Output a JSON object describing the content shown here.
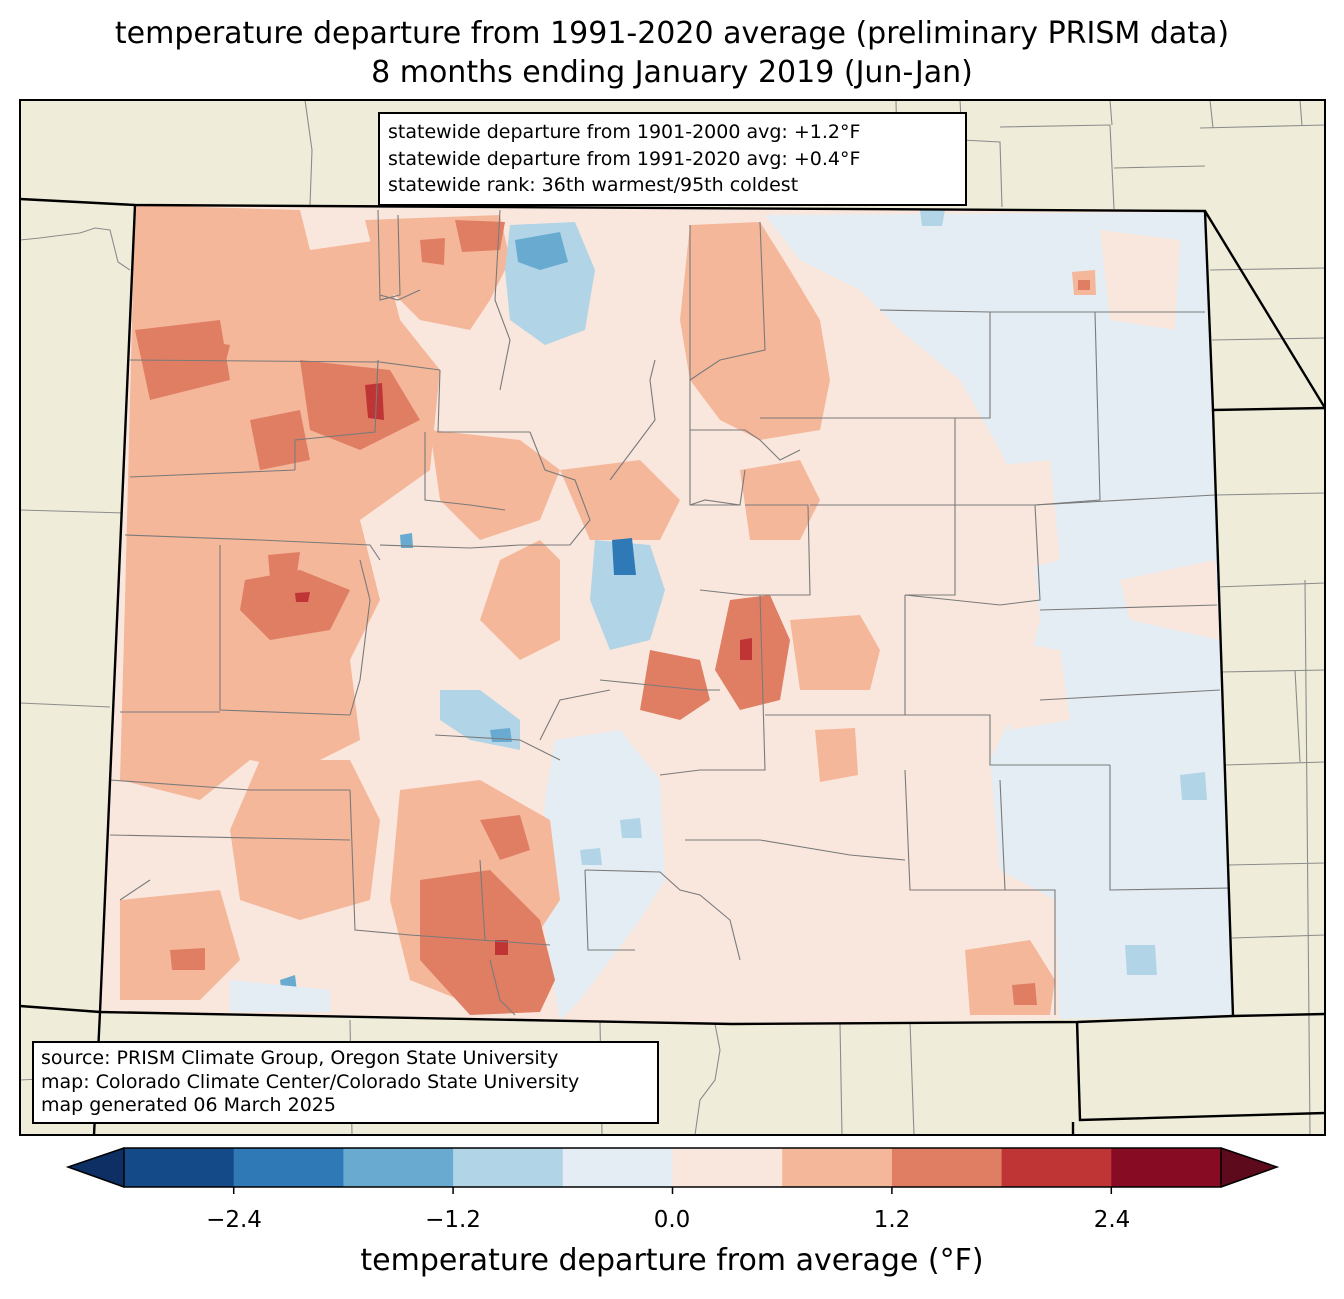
{
  "title": {
    "line1": "temperature departure from 1991-2020 average (preliminary PRISM data)",
    "line2": "8 months ending January 2019 (Jun-Jan)"
  },
  "stats": {
    "line1": "statewide departure from 1901-2000 avg: +1.2°F",
    "line2": "statewide departure from 1991-2020 avg: +0.4°F",
    "line3": "statewide rank: 36th warmest/95th coldest"
  },
  "source": {
    "line1": "source: PRISM Climate Group, Oregon State University",
    "line2": "map: Colorado Climate Center/Colorado State University",
    "line3": "map generated 06 March 2025"
  },
  "colorbar": {
    "title": "temperature departure from average (°F)",
    "ticks": [
      "−2.4",
      "−1.2",
      "0.0",
      "1.2",
      "2.4"
    ],
    "tick_values": [
      -2.4,
      -1.2,
      0.0,
      1.2,
      2.4
    ],
    "bounds": [
      -3.0,
      3.0
    ],
    "step": 0.6,
    "under_color": "#0d2f63",
    "over_color": "#5d0a1c",
    "colors": [
      "#134a87",
      "#2f79b6",
      "#69abd0",
      "#b1d4e6",
      "#e4edf4",
      "#f9e7de",
      "#f5b79a",
      "#e07e64",
      "#bf3536",
      "#880b24"
    ]
  },
  "map": {
    "land_color": "#efedda",
    "outside_border_color": "#808080",
    "state_border_color": "#000000",
    "county_line_color": "#7a7a7a"
  }
}
